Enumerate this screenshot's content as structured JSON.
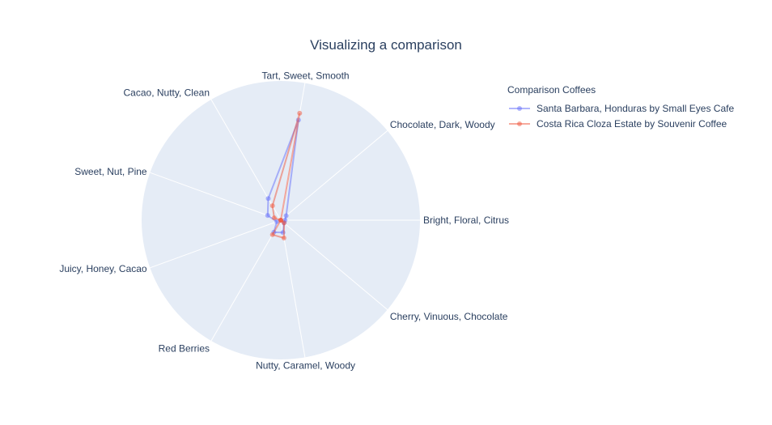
{
  "chart_data": {
    "type": "radar",
    "title": "Visualizing a comparison",
    "legend_title": "Comparison Coffees",
    "legend_position": "top-right",
    "categories": [
      "Bright, Floral, Citrus",
      "Chocolate, Dark, Woody",
      "Tart, Sweet, Smooth",
      "Cacao, Nutty, Clean",
      "Sweet, Nut, Pine",
      "Juicy, Honey, Cacao",
      "Red Berries",
      "Nutty, Caramel, Woody",
      "Cherry, Vinuous, Chocolate"
    ],
    "radial_range": [
      0,
      1
    ],
    "series": [
      {
        "name": "Santa Barbara, Honduras by Small Eyes Cafe",
        "color": "#636efa",
        "values": [
          0.03,
          0.05,
          0.73,
          0.18,
          0.1,
          0.03,
          0.1,
          0.09,
          0.03
        ]
      },
      {
        "name": "Costa Rica Cloza Estate by Souvenir Coffee",
        "color": "#ef553b",
        "values": [
          0.0,
          0.0,
          0.78,
          0.12,
          0.05,
          0.0,
          0.12,
          0.13,
          0.03
        ]
      }
    ]
  }
}
